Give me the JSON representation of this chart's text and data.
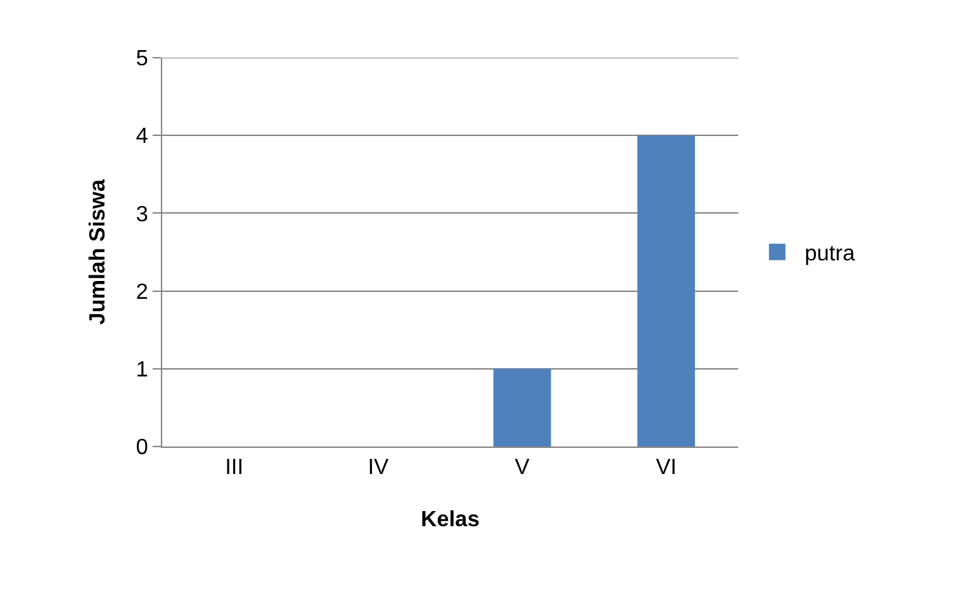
{
  "chart_data": {
    "type": "bar",
    "xlabel": "Kelas",
    "ylabel": "Jumlah Siswa",
    "categories": [
      "III",
      "IV",
      "V",
      "VI"
    ],
    "series": [
      {
        "name": "putra",
        "color": "#4f81bd",
        "values": [
          0,
          0,
          1,
          4
        ]
      }
    ],
    "ylim": [
      0,
      5
    ],
    "yticks": [
      0,
      1,
      2,
      3,
      4,
      5
    ],
    "grid": "y",
    "legend": "right"
  }
}
